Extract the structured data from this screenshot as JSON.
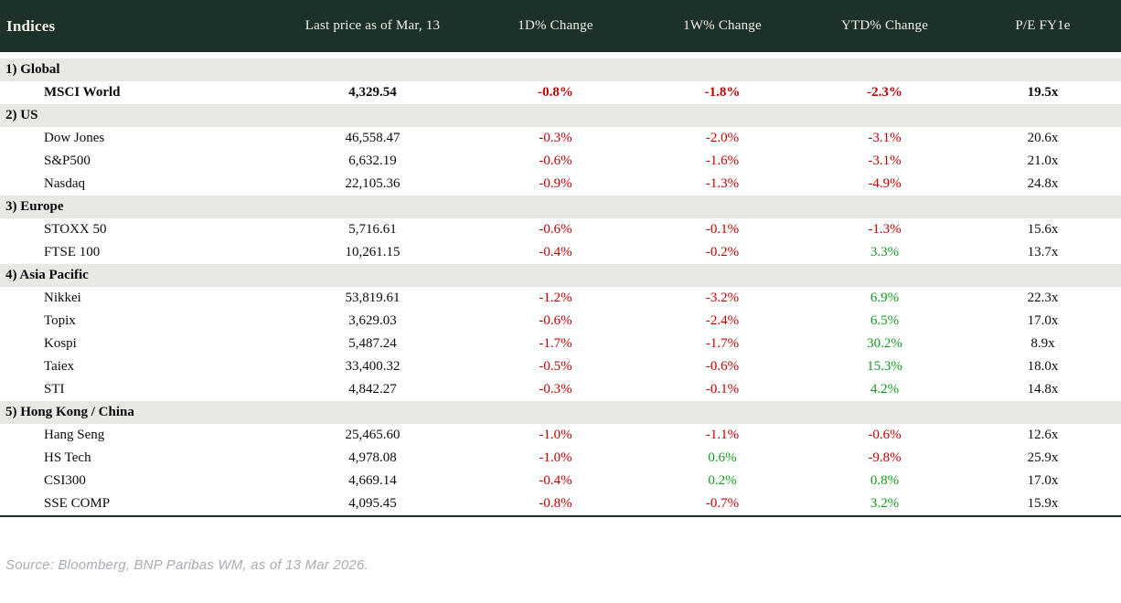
{
  "colors": {
    "header_bg": "#1d312b",
    "header_text": "#f3f0e8",
    "section_bg": "#e7e9e5",
    "negative": "#c00000",
    "positive": "#12991f",
    "source_text": "#a6adb4"
  },
  "chart_data": {
    "type": "table",
    "title": "Indices",
    "columns": [
      "Indices",
      "Last price as of Mar, 13",
      "1D% Change",
      "1W% Change",
      "YTD% Change",
      "P/E FY1e"
    ],
    "sections": [
      {
        "label": "1) Global",
        "rows": [
          {
            "name": "MSCI World",
            "price": "4,329.54",
            "d1": "-0.8%",
            "w1": "-1.8%",
            "ytd": "-2.3%",
            "pe": "19.5x",
            "bold": true
          }
        ]
      },
      {
        "label": "2) US",
        "rows": [
          {
            "name": "Dow Jones",
            "price": "46,558.47",
            "d1": "-0.3%",
            "w1": "-2.0%",
            "ytd": "-3.1%",
            "pe": "20.6x"
          },
          {
            "name": "S&P500",
            "price": "6,632.19",
            "d1": "-0.6%",
            "w1": "-1.6%",
            "ytd": "-3.1%",
            "pe": "21.0x"
          },
          {
            "name": "Nasdaq",
            "price": "22,105.36",
            "d1": "-0.9%",
            "w1": "-1.3%",
            "ytd": "-4.9%",
            "pe": "24.8x"
          }
        ]
      },
      {
        "label": "3) Europe",
        "rows": [
          {
            "name": "STOXX 50",
            "price": "5,716.61",
            "d1": "-0.6%",
            "w1": "-0.1%",
            "ytd": "-1.3%",
            "pe": "15.6x"
          },
          {
            "name": "FTSE 100",
            "price": "10,261.15",
            "d1": "-0.4%",
            "w1": "-0.2%",
            "ytd": "3.3%",
            "pe": "13.7x"
          }
        ]
      },
      {
        "label": "4) Asia Pacific",
        "rows": [
          {
            "name": "Nikkei",
            "price": "53,819.61",
            "d1": "-1.2%",
            "w1": "-3.2%",
            "ytd": "6.9%",
            "pe": "22.3x"
          },
          {
            "name": "Topix",
            "price": "3,629.03",
            "d1": "-0.6%",
            "w1": "-2.4%",
            "ytd": "6.5%",
            "pe": "17.0x"
          },
          {
            "name": "Kospi",
            "price": "5,487.24",
            "d1": "-1.7%",
            "w1": "-1.7%",
            "ytd": "30.2%",
            "pe": "8.9x"
          },
          {
            "name": "Taiex",
            "price": "33,400.32",
            "d1": "-0.5%",
            "w1": "-0.6%",
            "ytd": "15.3%",
            "pe": "18.0x"
          },
          {
            "name": "STI",
            "price": "4,842.27",
            "d1": "-0.3%",
            "w1": "-0.1%",
            "ytd": "4.2%",
            "pe": "14.8x"
          }
        ]
      },
      {
        "label": "5) Hong Kong / China",
        "rows": [
          {
            "name": "Hang Seng",
            "price": "25,465.60",
            "d1": "-1.0%",
            "w1": "-1.1%",
            "ytd": "-0.6%",
            "pe": "12.6x"
          },
          {
            "name": "HS Tech",
            "price": "4,978.08",
            "d1": "-1.0%",
            "w1": "0.6%",
            "ytd": "-9.8%",
            "pe": "25.9x"
          },
          {
            "name": "CSI300",
            "price": "4,669.14",
            "d1": "-0.4%",
            "w1": "0.2%",
            "ytd": "0.8%",
            "pe": "17.0x"
          },
          {
            "name": "SSE COMP",
            "price": "4,095.45",
            "d1": "-0.8%",
            "w1": "-0.7%",
            "ytd": "3.2%",
            "pe": "15.9x"
          }
        ]
      }
    ],
    "source": "Source: Bloomberg, BNP Paribas WM, as of 13 Mar 2026."
  }
}
